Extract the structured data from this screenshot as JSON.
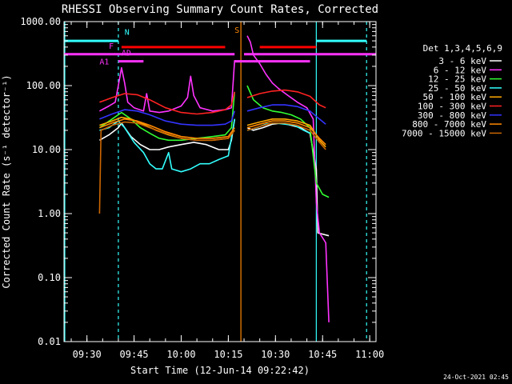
{
  "chart_data": {
    "type": "line",
    "title": "RHESSI Observing Summary Count Rates, Corrected",
    "xlabel": "Start Time (12-Jun-14 09:22:42)",
    "ylabel": "Corrected Count Rate (s⁻¹ detector⁻¹)",
    "xlim": [
      "09:22:42",
      "11:02"
    ],
    "ylim": [
      0.01,
      1000
    ],
    "yscale": "log",
    "grid": false,
    "legend_position": "right",
    "x_ticks": [
      "09:30",
      "09:45",
      "10:00",
      "10:15",
      "10:30",
      "10:45",
      "11:00"
    ],
    "y_ticks": [
      "0.01",
      "0.10",
      "1.00",
      "10.00",
      "100.00",
      "1000.00"
    ],
    "legend_title": "Det 1,3,4,5,6,9",
    "series": [
      {
        "name": "3 - 6 keV",
        "color": "#ffffff",
        "segments": [
          [
            [
              "09:34",
              14
            ],
            [
              "09:37",
              17
            ],
            [
              "09:40",
              22
            ],
            [
              "09:41",
              26
            ],
            [
              "09:42",
              22
            ],
            [
              "09:44",
              16
            ],
            [
              "09:47",
              12
            ],
            [
              "09:50",
              10
            ],
            [
              "09:53",
              10
            ],
            [
              "09:56",
              11
            ],
            [
              "10:00",
              12
            ],
            [
              "10:04",
              13
            ],
            [
              "10:08",
              12
            ],
            [
              "10:12",
              10
            ],
            [
              "10:15",
              10
            ],
            [
              "10:16",
              14
            ],
            [
              "10:17",
              30
            ]
          ],
          [
            [
              "10:21",
              22
            ],
            [
              "10:23",
              20
            ],
            [
              "10:26",
              22
            ],
            [
              "10:29",
              25
            ],
            [
              "10:32",
              26
            ],
            [
              "10:35",
              24
            ],
            [
              "10:38",
              22
            ],
            [
              "10:41",
              18
            ],
            [
              "10:43",
              5
            ],
            [
              "10:43.5",
              0.5
            ],
            [
              "10:47",
              0.45
            ]
          ]
        ]
      },
      {
        "name": "6 - 12 keV",
        "color": "#ff33ff",
        "segments": [
          [
            [
              "09:34",
              40
            ],
            [
              "09:37",
              48
            ],
            [
              "09:39",
              55
            ],
            [
              "09:40",
              100
            ],
            [
              "09:41",
              190
            ],
            [
              "09:42",
              110
            ],
            [
              "09:43",
              55
            ],
            [
              "09:45",
              45
            ],
            [
              "09:48",
              40
            ],
            [
              "09:49",
              75
            ],
            [
              "09:50",
              40
            ],
            [
              "09:53",
              38
            ],
            [
              "09:56",
              40
            ],
            [
              "10:00",
              48
            ],
            [
              "10:02",
              65
            ],
            [
              "10:03",
              140
            ],
            [
              "10:04",
              70
            ],
            [
              "10:06",
              45
            ],
            [
              "10:10",
              40
            ],
            [
              "10:14",
              42
            ],
            [
              "10:16",
              45
            ],
            [
              "10:17",
              250
            ]
          ],
          [
            [
              "10:21",
              600
            ],
            [
              "10:22",
              480
            ],
            [
              "10:23",
              300
            ],
            [
              "10:25",
              220
            ],
            [
              "10:27",
              150
            ],
            [
              "10:29",
              110
            ],
            [
              "10:31",
              90
            ],
            [
              "10:34",
              70
            ],
            [
              "10:37",
              55
            ],
            [
              "10:40",
              45
            ],
            [
              "10:42",
              30
            ],
            [
              "10:43",
              1.5
            ],
            [
              "10:44",
              0.5
            ],
            [
              "10:46",
              0.35
            ],
            [
              "10:47",
              0.02
            ]
          ]
        ]
      },
      {
        "name": "12 - 25 keV",
        "color": "#33ff33",
        "segments": [
          [
            [
              "09:34",
              22
            ],
            [
              "09:38",
              30
            ],
            [
              "09:41",
              38
            ],
            [
              "09:44",
              30
            ],
            [
              "09:47",
              22
            ],
            [
              "09:50",
              18
            ],
            [
              "09:53",
              15
            ],
            [
              "09:56",
              14
            ],
            [
              "10:00",
              14
            ],
            [
              "10:05",
              15
            ],
            [
              "10:10",
              16
            ],
            [
              "10:14",
              17
            ],
            [
              "10:16",
              22
            ],
            [
              "10:17",
              80
            ]
          ],
          [
            [
              "10:21",
              100
            ],
            [
              "10:23",
              60
            ],
            [
              "10:26",
              45
            ],
            [
              "10:29",
              40
            ],
            [
              "10:32",
              38
            ],
            [
              "10:35",
              35
            ],
            [
              "10:38",
              30
            ],
            [
              "10:41",
              22
            ],
            [
              "10:43",
              3
            ],
            [
              "10:45",
              2.0
            ],
            [
              "10:47",
              1.8
            ]
          ]
        ]
      },
      {
        "name": "25 - 50 keV",
        "color": "#33ffff",
        "segments": [
          [
            [
              "09:34",
              20
            ],
            [
              "09:37",
              22
            ],
            [
              "09:40",
              28
            ],
            [
              "09:42",
              22
            ],
            [
              "09:45",
              13
            ],
            [
              "09:48",
              9
            ],
            [
              "09:50",
              6
            ],
            [
              "09:52",
              5
            ],
            [
              "09:54",
              5
            ],
            [
              "09:56",
              9
            ],
            [
              "09:57",
              5
            ],
            [
              "10:00",
              4.5
            ],
            [
              "10:03",
              5
            ],
            [
              "10:06",
              6
            ],
            [
              "10:09",
              6
            ],
            [
              "10:12",
              7
            ],
            [
              "10:15",
              8
            ],
            [
              "10:17",
              30
            ]
          ],
          [
            [
              "10:21",
              20
            ],
            [
              "10:24",
              22
            ],
            [
              "10:27",
              25
            ],
            [
              "10:30",
              26
            ],
            [
              "10:33",
              25
            ],
            [
              "10:36",
              24
            ],
            [
              "10:39",
              20
            ],
            [
              "10:41",
              18
            ]
          ]
        ]
      },
      {
        "name": "50 - 100 keV",
        "color": "#ffaa00",
        "segments": [
          [
            [
              "09:34",
              24
            ],
            [
              "09:38",
              28
            ],
            [
              "09:41",
              32
            ],
            [
              "09:44",
              30
            ],
            [
              "09:48",
              25
            ],
            [
              "09:52",
              20
            ],
            [
              "09:56",
              17
            ],
            [
              "10:00",
              15
            ],
            [
              "10:05",
              14
            ],
            [
              "10:10",
              14
            ],
            [
              "10:15",
              15
            ],
            [
              "10:17",
              20
            ]
          ],
          [
            [
              "10:21",
              24
            ],
            [
              "10:25",
              27
            ],
            [
              "10:29",
              30
            ],
            [
              "10:33",
              30
            ],
            [
              "10:37",
              28
            ],
            [
              "10:41",
              24
            ],
            [
              "10:44",
              14
            ],
            [
              "10:46",
              11
            ]
          ]
        ]
      },
      {
        "name": "100 - 300 keV",
        "color": "#ff2222",
        "segments": [
          [
            [
              "09:34",
              55
            ],
            [
              "09:38",
              65
            ],
            [
              "09:42",
              75
            ],
            [
              "09:46",
              72
            ],
            [
              "09:50",
              60
            ],
            [
              "09:55",
              45
            ],
            [
              "10:00",
              38
            ],
            [
              "10:05",
              36
            ],
            [
              "10:10",
              38
            ],
            [
              "10:14",
              42
            ],
            [
              "10:16",
              50
            ],
            [
              "10:17",
              80
            ]
          ],
          [
            [
              "10:21",
              65
            ],
            [
              "10:25",
              75
            ],
            [
              "10:29",
              82
            ],
            [
              "10:33",
              85
            ],
            [
              "10:37",
              80
            ],
            [
              "10:41",
              68
            ],
            [
              "10:44",
              50
            ],
            [
              "10:46",
              45
            ]
          ]
        ]
      },
      {
        "name": "300 - 800 keV",
        "color": "#3333ff",
        "segments": [
          [
            [
              "09:34",
              30
            ],
            [
              "09:38",
              36
            ],
            [
              "09:42",
              42
            ],
            [
              "09:46",
              40
            ],
            [
              "09:50",
              35
            ],
            [
              "09:55",
              28
            ],
            [
              "10:00",
              25
            ],
            [
              "10:05",
              24
            ],
            [
              "10:10",
              24
            ],
            [
              "10:14",
              25
            ],
            [
              "10:16",
              28
            ],
            [
              "10:17",
              40
            ]
          ],
          [
            [
              "10:21",
              40
            ],
            [
              "10:25",
              45
            ],
            [
              "10:29",
              50
            ],
            [
              "10:33",
              50
            ],
            [
              "10:37",
              47
            ],
            [
              "10:41",
              40
            ],
            [
              "10:44",
              30
            ],
            [
              "10:46",
              25
            ]
          ]
        ]
      },
      {
        "name": "800 - 7000 keV",
        "color": "#ff8800",
        "segments": [
          [
            [
              "09:34",
              22
            ],
            [
              "09:38",
              26
            ],
            [
              "09:42",
              30
            ],
            [
              "09:46",
              28
            ],
            [
              "09:50",
              24
            ],
            [
              "09:55",
              19
            ],
            [
              "10:00",
              16
            ],
            [
              "10:05",
              15
            ],
            [
              "10:10",
              15
            ],
            [
              "10:15",
              16
            ],
            [
              "10:17",
              22
            ]
          ],
          [
            [
              "10:21",
              22
            ],
            [
              "10:25",
              25
            ],
            [
              "10:29",
              28
            ],
            [
              "10:33",
              28
            ],
            [
              "10:37",
              26
            ],
            [
              "10:41",
              22
            ],
            [
              "10:44",
              15
            ],
            [
              "10:46",
              12
            ]
          ]
        ]
      },
      {
        "name": "7000 - 15000 keV",
        "color": "#cc6600",
        "segments": [
          [
            [
              "09:34",
              1.0
            ],
            [
              "09:34.5",
              20
            ],
            [
              "09:38",
              24
            ],
            [
              "09:42",
              27
            ],
            [
              "09:46",
              26
            ],
            [
              "09:50",
              22
            ],
            [
              "09:55",
              18
            ],
            [
              "10:00",
              15
            ],
            [
              "10:05",
              14
            ],
            [
              "10:10",
              14
            ],
            [
              "10:15",
              15
            ],
            [
              "10:17",
              20
            ]
          ],
          [
            [
              "10:21",
              20
            ],
            [
              "10:25",
              23
            ],
            [
              "10:29",
              26
            ],
            [
              "10:33",
              26
            ],
            [
              "10:37",
              24
            ],
            [
              "10:41",
              20
            ],
            [
              "10:44",
              13
            ],
            [
              "10:46",
              10
            ]
          ]
        ]
      }
    ],
    "vertical_lines": [
      {
        "x": "09:22:42",
        "color": "#33ffff",
        "style": "solid"
      },
      {
        "x": "09:40",
        "color": "#33ffff",
        "style": "dashed"
      },
      {
        "x": "10:19",
        "color": "#ff8800",
        "style": "solid"
      },
      {
        "x": "10:43",
        "color": "#33ffff",
        "style": "solid"
      },
      {
        "x": "10:59",
        "color": "#33ffff",
        "style": "dashed"
      }
    ],
    "flag_bars": [
      {
        "label": "",
        "color": "#33ffff",
        "y": 500,
        "spans": [
          [
            "09:22:42",
            "09:40"
          ],
          [
            "10:43",
            "10:59"
          ]
        ]
      },
      {
        "label": "F",
        "color": "#ff0000",
        "y": 400,
        "spans": [
          [
            "09:41",
            "10:14"
          ],
          [
            "10:25",
            "10:43"
          ]
        ]
      },
      {
        "label": "",
        "color": "#ff33ff",
        "y": 310,
        "spans": [
          [
            "09:22:42",
            "10:17"
          ],
          [
            "10:20",
            "11:02"
          ]
        ]
      },
      {
        "label": "A1",
        "color": "#ff33ff",
        "y": 240,
        "spans": [
          [
            "09:40",
            "09:48"
          ],
          [
            "10:17",
            "10:41"
          ]
        ]
      }
    ],
    "flag_labels": [
      {
        "text": "N",
        "x": "09:42",
        "y": 700,
        "color": "#33ffff"
      },
      {
        "text": "F",
        "x": "09:37",
        "y": 420,
        "color": "#ff33ff"
      },
      {
        "text": "AD",
        "x": "09:41",
        "y": 330,
        "color": "#ff33ff"
      },
      {
        "text": "A1",
        "x": "09:34",
        "y": 240,
        "color": "#ff33ff"
      },
      {
        "text": "S",
        "x": "10:17",
        "y": 750,
        "color": "#ff8800"
      }
    ]
  },
  "footer": {
    "timestamp": "24-Oct-2021 02:45"
  }
}
